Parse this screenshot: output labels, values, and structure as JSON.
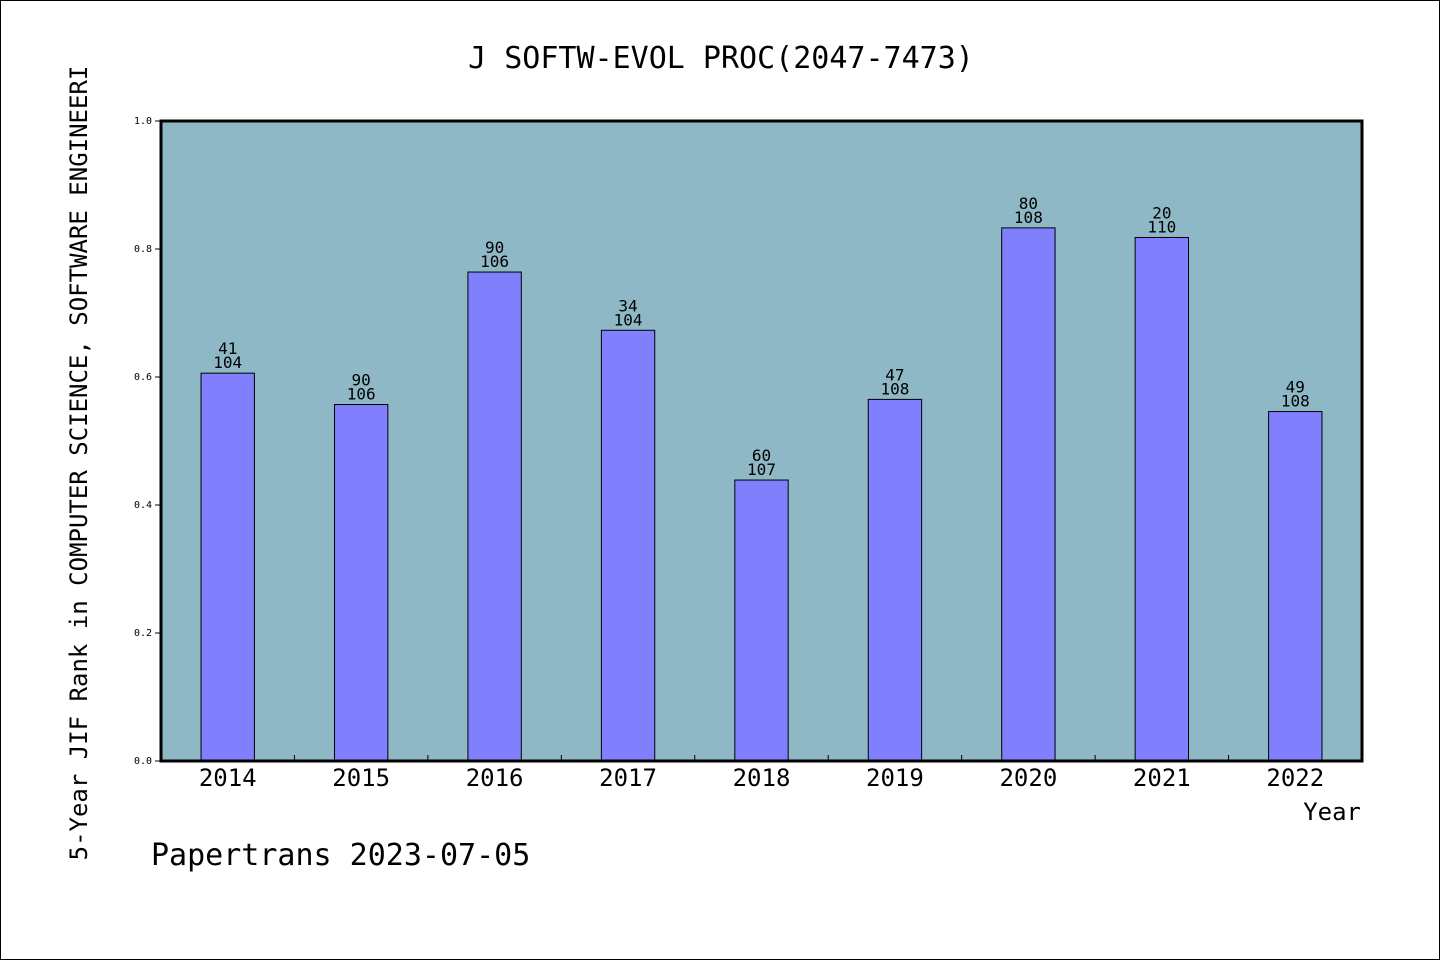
{
  "chart_data": {
    "type": "bar",
    "title": "J SOFTW-EVOL PROC(2047-7473)",
    "xlabel": "Year",
    "ylabel": "5-Year JIF Rank in COMPUTER SCIENCE, SOFTWARE ENGINEERI",
    "ylim": [
      0,
      1.0
    ],
    "yticks": [
      "0.0",
      "0.2",
      "0.4",
      "0.6",
      "0.8",
      "1.0"
    ],
    "ytick_values": [
      0.0,
      0.2,
      0.4,
      0.6,
      0.8,
      1.0
    ],
    "categories": [
      "2014",
      "2015",
      "2016",
      "2017",
      "2018",
      "2019",
      "2020",
      "2021",
      "2022"
    ],
    "values": [
      0.606,
      0.557,
      0.764,
      0.673,
      0.439,
      0.565,
      0.833,
      0.818,
      0.546
    ],
    "label_top": [
      "41",
      "90",
      "90",
      "34",
      "60",
      "47",
      "80",
      "20",
      "49"
    ],
    "label_bottom": [
      "104",
      "106",
      "106",
      "104",
      "107",
      "108",
      "108",
      "110",
      "108"
    ],
    "grid": false,
    "colors": {
      "plot_background": "#8fb8c6",
      "bar_fill": "#8080ff",
      "bar_stroke": "#000000"
    }
  },
  "footer": "Papertrans 2023-07-05"
}
